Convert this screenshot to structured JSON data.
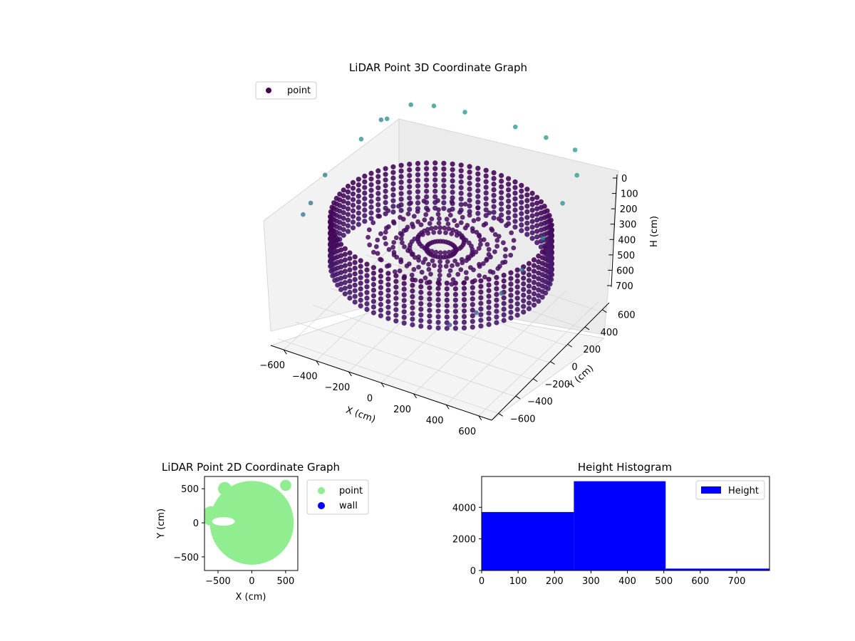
{
  "chart_data": [
    {
      "type": "scatter",
      "projection": "3d",
      "title": "LiDAR Point 3D Coordinate Graph",
      "xlabel": "X (cm)",
      "ylabel": "Y (cm)",
      "zlabel": "H (cm)",
      "xticks": [
        -600,
        -400,
        -200,
        0,
        200,
        400,
        600
      ],
      "yticks": [
        -600,
        -400,
        -200,
        0,
        200,
        400,
        600
      ],
      "zticks": [
        0,
        100,
        200,
        300,
        400,
        500,
        600,
        700
      ],
      "xlim": [
        -680,
        680
      ],
      "ylim": [
        -680,
        680
      ],
      "zlim": [
        0,
        760
      ],
      "z_inverted": true,
      "grid": true,
      "legend": {
        "position": "top-left",
        "entries": [
          {
            "name": "point",
            "color": "#440154"
          }
        ]
      },
      "colormap": "viridis",
      "description_series": [
        {
          "name": "point",
          "shape": "ring",
          "ring_radius_cm": 600,
          "ring_height_range_cm": [
            250,
            500
          ],
          "color_by": "height"
        }
      ],
      "outlier_points_cm": [
        [
          -640,
          500,
          120
        ],
        [
          -560,
          420,
          60
        ],
        [
          -600,
          200,
          80
        ],
        [
          -660,
          -100,
          150
        ],
        [
          -640,
          -300,
          200
        ],
        [
          -600,
          -460,
          180
        ],
        [
          -500,
          580,
          40
        ],
        [
          -380,
          620,
          30
        ],
        [
          -200,
          640,
          20
        ],
        [
          100,
          660,
          20
        ],
        [
          300,
          640,
          10
        ],
        [
          500,
          600,
          0
        ],
        [
          620,
          400,
          10
        ],
        [
          640,
          200,
          60
        ],
        [
          660,
          -60,
          120
        ],
        [
          640,
          -260,
          200
        ],
        [
          600,
          -420,
          260
        ],
        [
          520,
          -560,
          320
        ],
        [
          400,
          -640,
          380
        ]
      ]
    },
    {
      "type": "scatter",
      "title": "LiDAR Point 2D Coordinate Graph",
      "xlabel": "X (cm)",
      "ylabel": "Y (cm)",
      "xticks": [
        -500,
        0,
        500
      ],
      "yticks": [
        -500,
        0,
        500
      ],
      "xlim": [
        -700,
        680
      ],
      "ylim": [
        -700,
        680
      ],
      "legend": {
        "position": "outside-right",
        "entries": [
          {
            "name": "point",
            "color": "#90ee90"
          },
          {
            "name": "wall",
            "color": "#0000ff"
          }
        ]
      },
      "series": [
        {
          "name": "point",
          "color": "#90ee90",
          "shape": "filled-disk",
          "radius_cm": 620
        },
        {
          "name": "wall",
          "color": "#0000ff",
          "values": []
        }
      ]
    },
    {
      "type": "bar",
      "subtype": "histogram",
      "title": "Height Histogram",
      "xlabel": "",
      "ylabel": "",
      "xticks": [
        0,
        100,
        200,
        300,
        400,
        500,
        600,
        700
      ],
      "yticks": [
        0,
        2000,
        4000
      ],
      "xlim": [
        0,
        790
      ],
      "ylim": [
        0,
        5950
      ],
      "legend": {
        "position": "top-right",
        "entries": [
          {
            "name": "Height",
            "color": "#0000ff"
          }
        ]
      },
      "bins": [
        [
          0,
          253
        ],
        [
          253,
          505
        ],
        [
          505,
          790
        ]
      ],
      "values": [
        3700,
        5650,
        120
      ],
      "color": "#0000ff"
    }
  ]
}
